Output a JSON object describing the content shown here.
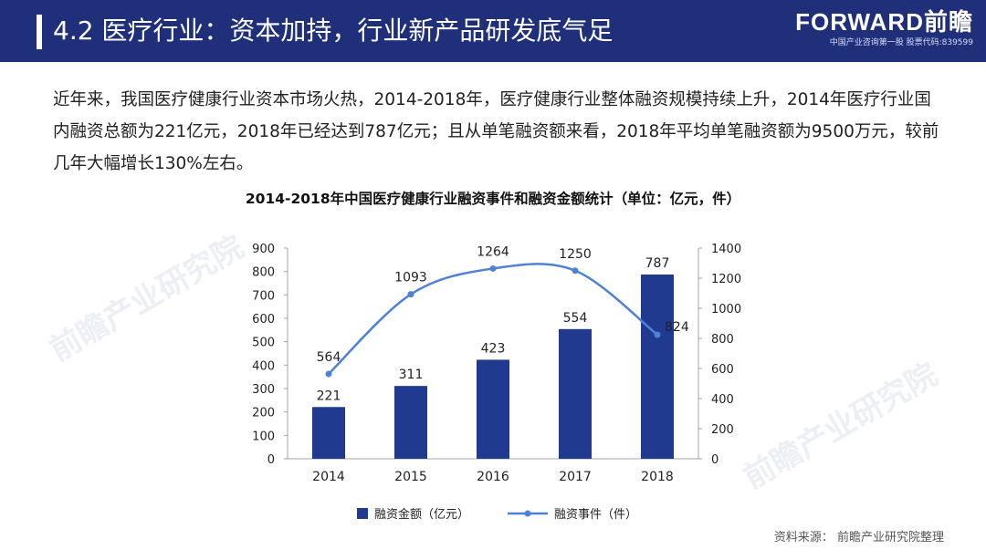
{
  "header": {
    "title": "4.2 医疗行业：资本加持，行业新产品研发底气足",
    "brand": "FORWARD前瞻",
    "tagline": "中国产业咨询第一股  股票代码:839599"
  },
  "watermark": "前瞻产业研究院",
  "body_text": "近年来，我国医疗健康行业资本市场火热，2014-2018年，医疗健康行业整体融资规模持续上升，2014年医疗行业国内融资总额为221亿元，2018年已经达到787亿元；且从单笔融资额来看，2018年平均单笔融资额为9500万元，较前几年大幅增长130%左右。",
  "source": "资料来源：   前瞻产业研究院整理",
  "colors": {
    "header_bg": "#1f2f7a",
    "bar": "#1f3a8f",
    "line": "#4f81d6"
  },
  "chart_data": {
    "type": "bar+line",
    "title": "2014-2018年中国医疗健康行业融资事件和融资金额统计（单位：亿元，件）",
    "categories": [
      "2014",
      "2015",
      "2016",
      "2017",
      "2018"
    ],
    "series": [
      {
        "name": "融资金额（亿元）",
        "type": "bar",
        "axis": "left",
        "values": [
          221,
          311,
          423,
          554,
          787
        ]
      },
      {
        "name": "融资事件（件）",
        "type": "line",
        "axis": "right",
        "values": [
          564,
          1093,
          1264,
          1250,
          824
        ]
      }
    ],
    "y_left": {
      "min": 0,
      "max": 900,
      "step": 100
    },
    "y_right": {
      "min": 0,
      "max": 1400,
      "step": 200
    },
    "legend_position": "bottom",
    "grid": false
  }
}
